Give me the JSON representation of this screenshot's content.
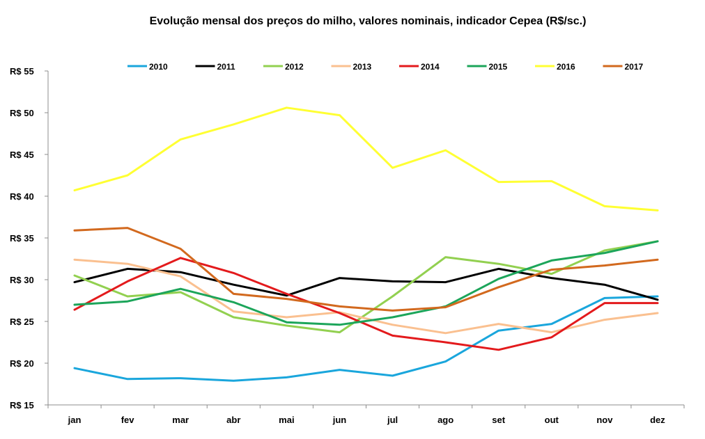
{
  "chart_data": {
    "type": "line",
    "title": "Evolução mensal dos preços do milho, valores nominais, indicador Cepea (R$/sc.)",
    "xlabel": "",
    "ylabel": "",
    "categories": [
      "jan",
      "fev",
      "mar",
      "abr",
      "mai",
      "jun",
      "jul",
      "ago",
      "set",
      "out",
      "nov",
      "dez"
    ],
    "ylim": [
      15,
      55
    ],
    "yticks": [
      15,
      20,
      25,
      30,
      35,
      40,
      45,
      50,
      55
    ],
    "ytick_labels": [
      "R$ 15",
      "R$ 20",
      "R$ 25",
      "R$ 30",
      "R$ 35",
      "R$ 40",
      "R$ 45",
      "R$ 50",
      "R$ 55"
    ],
    "grid": false,
    "legend_position": "top",
    "series": [
      {
        "name": "2010",
        "color": "#1aa6dc",
        "values": [
          19.4,
          18.1,
          18.2,
          17.9,
          18.3,
          19.2,
          18.5,
          20.2,
          23.9,
          24.7,
          27.8,
          28.0
        ]
      },
      {
        "name": "2011",
        "color": "#000000",
        "values": [
          29.7,
          31.3,
          30.9,
          29.4,
          28.1,
          30.2,
          29.8,
          29.7,
          31.3,
          30.2,
          29.4,
          27.6
        ]
      },
      {
        "name": "2012",
        "color": "#92d050",
        "values": [
          30.5,
          28.0,
          28.5,
          25.5,
          24.5,
          23.7,
          28.0,
          32.7,
          31.9,
          30.7,
          33.5,
          34.6
        ]
      },
      {
        "name": "2013",
        "color": "#fac090",
        "values": [
          32.4,
          31.9,
          30.4,
          26.2,
          25.5,
          26.1,
          24.6,
          23.6,
          24.7,
          23.7,
          25.2,
          26.0
        ]
      },
      {
        "name": "2014",
        "color": "#e31a1c",
        "values": [
          26.4,
          29.8,
          32.6,
          30.8,
          28.3,
          26.0,
          23.3,
          22.5,
          21.6,
          23.1,
          27.2,
          27.2
        ]
      },
      {
        "name": "2015",
        "color": "#1ca55a",
        "values": [
          27.0,
          27.4,
          28.9,
          27.3,
          24.9,
          24.6,
          25.5,
          26.8,
          30.1,
          32.3,
          33.2,
          34.6
        ]
      },
      {
        "name": "2016",
        "color": "#ffff33",
        "values": [
          40.7,
          42.5,
          46.8,
          48.6,
          50.6,
          49.7,
          43.4,
          45.5,
          41.7,
          41.8,
          38.8,
          38.3
        ]
      },
      {
        "name": "2017",
        "color": "#d2691e",
        "values": [
          35.9,
          36.2,
          33.7,
          28.3,
          27.7,
          26.8,
          26.3,
          26.7,
          29.1,
          31.2,
          31.7,
          32.4
        ]
      }
    ]
  }
}
